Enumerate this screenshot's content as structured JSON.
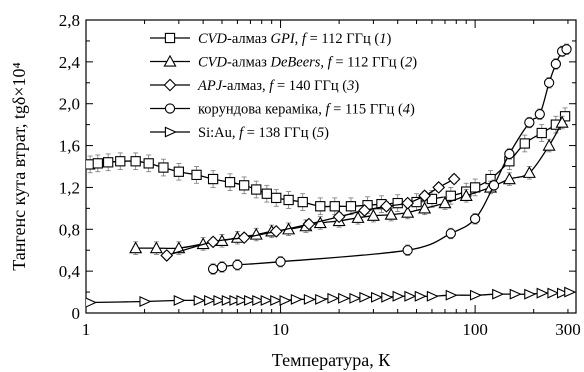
{
  "chart_data": {
    "type": "line",
    "xlabel": "Температура, К",
    "ylabel": "Тангенс кута втрат, tgδ×10⁴",
    "x_scale": "log",
    "xlim": [
      1,
      330
    ],
    "ylim": [
      0,
      2.8
    ],
    "x_ticks": [
      {
        "value": 1,
        "label": "1"
      },
      {
        "value": 10,
        "label": "10"
      },
      {
        "value": 100,
        "label": "100"
      },
      {
        "value": 300,
        "label": "300"
      }
    ],
    "y_ticks": [
      {
        "value": 0,
        "label": "0"
      },
      {
        "value": 0.4,
        "label": "0,4"
      },
      {
        "value": 0.8,
        "label": "0,8"
      },
      {
        "value": 1.2,
        "label": "1,2"
      },
      {
        "value": 1.6,
        "label": "1,6"
      },
      {
        "value": 2.0,
        "label": "2,0"
      },
      {
        "value": 2.4,
        "label": "2,4"
      },
      {
        "value": 2.8,
        "label": "2,8"
      }
    ],
    "legend_position": "top",
    "series": [
      {
        "name": "CVD-алмаз GPI, f = 112 ГГц (1)",
        "legend_parts": [
          {
            "t": "CVD",
            "i": true
          },
          {
            "t": "-алмаз ",
            "i": false
          },
          {
            "t": "GPI",
            "i": true
          },
          {
            "t": ", ",
            "i": false
          },
          {
            "t": "f",
            "i": true
          },
          {
            "t": " = 112 ГГц (",
            "i": false
          },
          {
            "t": "1",
            "i": true
          },
          {
            "t": ")",
            "i": false
          }
        ],
        "marker": "square",
        "points": [
          [
            1.05,
            1.42
          ],
          [
            1.15,
            1.43
          ],
          [
            1.3,
            1.44
          ],
          [
            1.5,
            1.45
          ],
          [
            1.8,
            1.45
          ],
          [
            2.1,
            1.43
          ],
          [
            2.5,
            1.39
          ],
          [
            3.0,
            1.35
          ],
          [
            3.7,
            1.32
          ],
          [
            4.5,
            1.28
          ],
          [
            5.5,
            1.25
          ],
          [
            6.5,
            1.22
          ],
          [
            7.5,
            1.18
          ],
          [
            8.5,
            1.14
          ],
          [
            9.5,
            1.1
          ],
          [
            11.0,
            1.08
          ],
          [
            13.0,
            1.06
          ],
          [
            16.0,
            1.02
          ],
          [
            19.0,
            1.02
          ],
          [
            23.0,
            1.02
          ],
          [
            28.0,
            1.03
          ],
          [
            33.0,
            1.04
          ],
          [
            40.0,
            1.05
          ],
          [
            50.0,
            1.06
          ],
          [
            60.0,
            1.09
          ],
          [
            75.0,
            1.12
          ],
          [
            90.0,
            1.16
          ],
          [
            100.0,
            1.2
          ],
          [
            120.0,
            1.28
          ],
          [
            150.0,
            1.45
          ],
          [
            180.0,
            1.62
          ],
          [
            220.0,
            1.72
          ],
          [
            260.0,
            1.8
          ],
          [
            290.0,
            1.88
          ]
        ],
        "error": 0.08
      },
      {
        "name": "CVD-алмаз DeBeers, f = 112 ГГц (2)",
        "legend_parts": [
          {
            "t": "CVD",
            "i": true
          },
          {
            "t": "-алмаз ",
            "i": false
          },
          {
            "t": "DeBeers",
            "i": true
          },
          {
            "t": ",  ",
            "i": false
          },
          {
            "t": "f",
            "i": true
          },
          {
            "t": " = 112 ГГц (",
            "i": false
          },
          {
            "t": "2",
            "i": true
          },
          {
            "t": ")",
            "i": false
          }
        ],
        "marker": "triangle-up",
        "points": [
          [
            1.8,
            0.62
          ],
          [
            2.3,
            0.62
          ],
          [
            3.0,
            0.62
          ],
          [
            4.0,
            0.66
          ],
          [
            5.0,
            0.69
          ],
          [
            6.0,
            0.72
          ],
          [
            7.5,
            0.75
          ],
          [
            9.0,
            0.78
          ],
          [
            11.0,
            0.8
          ],
          [
            13.5,
            0.83
          ],
          [
            16.0,
            0.86
          ],
          [
            20.0,
            0.88
          ],
          [
            25.0,
            0.91
          ],
          [
            30.0,
            0.93
          ],
          [
            37.0,
            0.94
          ],
          [
            45.0,
            0.96
          ],
          [
            55.0,
            1.0
          ],
          [
            70.0,
            1.05
          ],
          [
            90.0,
            1.12
          ],
          [
            120.0,
            1.2
          ],
          [
            150.0,
            1.28
          ],
          [
            190.0,
            1.34
          ],
          [
            240.0,
            1.6
          ],
          [
            280.0,
            1.82
          ]
        ],
        "error": 0.06
      },
      {
        "name": "APJ-алмаз, f = 140 ГГц (3)",
        "legend_parts": [
          {
            "t": "APJ",
            "i": true
          },
          {
            "t": "-алмаз, ",
            "i": false
          },
          {
            "t": "f",
            "i": true
          },
          {
            "t": " = 140 ГГц (",
            "i": false
          },
          {
            "t": "3",
            "i": true
          },
          {
            "t": ")",
            "i": false
          }
        ],
        "marker": "diamond",
        "points": [
          [
            2.6,
            0.55
          ],
          [
            4.5,
            0.68
          ],
          [
            6.5,
            0.72
          ],
          [
            9.5,
            0.78
          ],
          [
            14.0,
            0.85
          ],
          [
            20.0,
            0.92
          ],
          [
            27.0,
            0.98
          ],
          [
            35.0,
            1.02
          ],
          [
            45.0,
            1.05
          ],
          [
            55.0,
            1.12
          ],
          [
            65.0,
            1.2
          ],
          [
            78.0,
            1.28
          ]
        ],
        "error": 0.04
      },
      {
        "name": "корундова кераміка, f = 115 ГГц (4)",
        "legend_parts": [
          {
            "t": "корундова кераміка, ",
            "i": false
          },
          {
            "t": "f",
            "i": true
          },
          {
            "t": " = 115 ГГц (",
            "i": false
          },
          {
            "t": "4",
            "i": true
          },
          {
            "t": ")",
            "i": false
          }
        ],
        "marker": "circle",
        "points": [
          [
            4.5,
            0.42
          ],
          [
            5.0,
            0.44
          ],
          [
            6.0,
            0.46
          ],
          [
            10.0,
            0.49
          ],
          [
            45.0,
            0.6
          ],
          [
            75.0,
            0.76
          ],
          [
            100.0,
            0.9
          ],
          [
            125.0,
            1.22
          ],
          [
            150.0,
            1.52
          ],
          [
            190.0,
            1.82
          ],
          [
            215.0,
            1.9
          ],
          [
            240.0,
            2.2
          ],
          [
            260.0,
            2.38
          ],
          [
            280.0,
            2.5
          ],
          [
            295.0,
            2.52
          ]
        ],
        "error": 0.05
      },
      {
        "name": "Si:Au, f = 138 ГГц (5)",
        "legend_parts": [
          {
            "t": "Si:Au, ",
            "i": false
          },
          {
            "t": "f",
            "i": true
          },
          {
            "t": " = 138 ГГц (",
            "i": false
          },
          {
            "t": "5",
            "i": true
          },
          {
            "t": ")",
            "i": false
          }
        ],
        "marker": "triangle-right",
        "points": [
          [
            1.05,
            0.1
          ],
          [
            2.0,
            0.11
          ],
          [
            3.0,
            0.12
          ],
          [
            3.8,
            0.12
          ],
          [
            4.3,
            0.12
          ],
          [
            4.8,
            0.12
          ],
          [
            5.3,
            0.12
          ],
          [
            5.8,
            0.12
          ],
          [
            6.3,
            0.12
          ],
          [
            6.9,
            0.12
          ],
          [
            7.6,
            0.12
          ],
          [
            8.4,
            0.12
          ],
          [
            9.4,
            0.12
          ],
          [
            10.5,
            0.12
          ],
          [
            12.0,
            0.13
          ],
          [
            14.0,
            0.13
          ],
          [
            16.0,
            0.13
          ],
          [
            18.5,
            0.14
          ],
          [
            21.0,
            0.14
          ],
          [
            24.0,
            0.14
          ],
          [
            27.0,
            0.15
          ],
          [
            31.0,
            0.15
          ],
          [
            35.0,
            0.15
          ],
          [
            40.0,
            0.16
          ],
          [
            46.0,
            0.16
          ],
          [
            52.0,
            0.16
          ],
          [
            60.0,
            0.16
          ],
          [
            75.0,
            0.17
          ],
          [
            100.0,
            0.17
          ],
          [
            130.0,
            0.18
          ],
          [
            160.0,
            0.18
          ],
          [
            190.0,
            0.18
          ],
          [
            220.0,
            0.19
          ],
          [
            250.0,
            0.19
          ],
          [
            280.0,
            0.19
          ],
          [
            305.0,
            0.2
          ]
        ],
        "error": 0
      }
    ]
  }
}
